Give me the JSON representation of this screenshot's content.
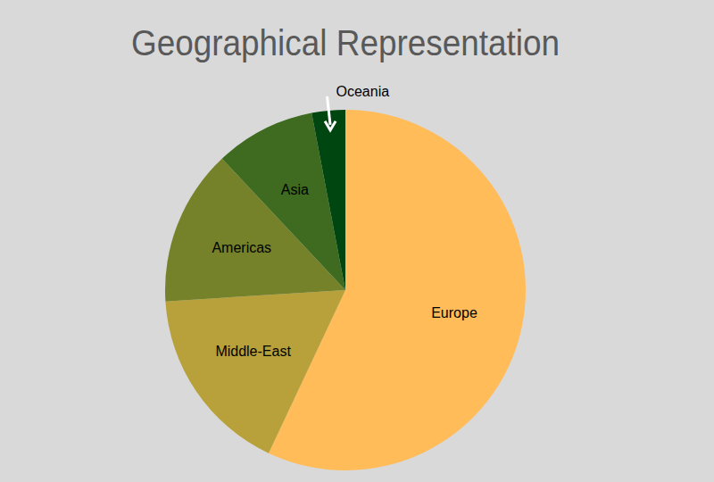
{
  "chart_data": {
    "type": "pie",
    "title": "Geographical Representation",
    "categories": [
      "Europe",
      "Middle-East",
      "Americas",
      "Asia",
      "Oceania"
    ],
    "values": [
      57,
      17,
      14,
      9,
      3
    ],
    "colors": [
      "#ffbc58",
      "#b8a13a",
      "#76822a",
      "#3e6b1f",
      "#004611"
    ]
  }
}
